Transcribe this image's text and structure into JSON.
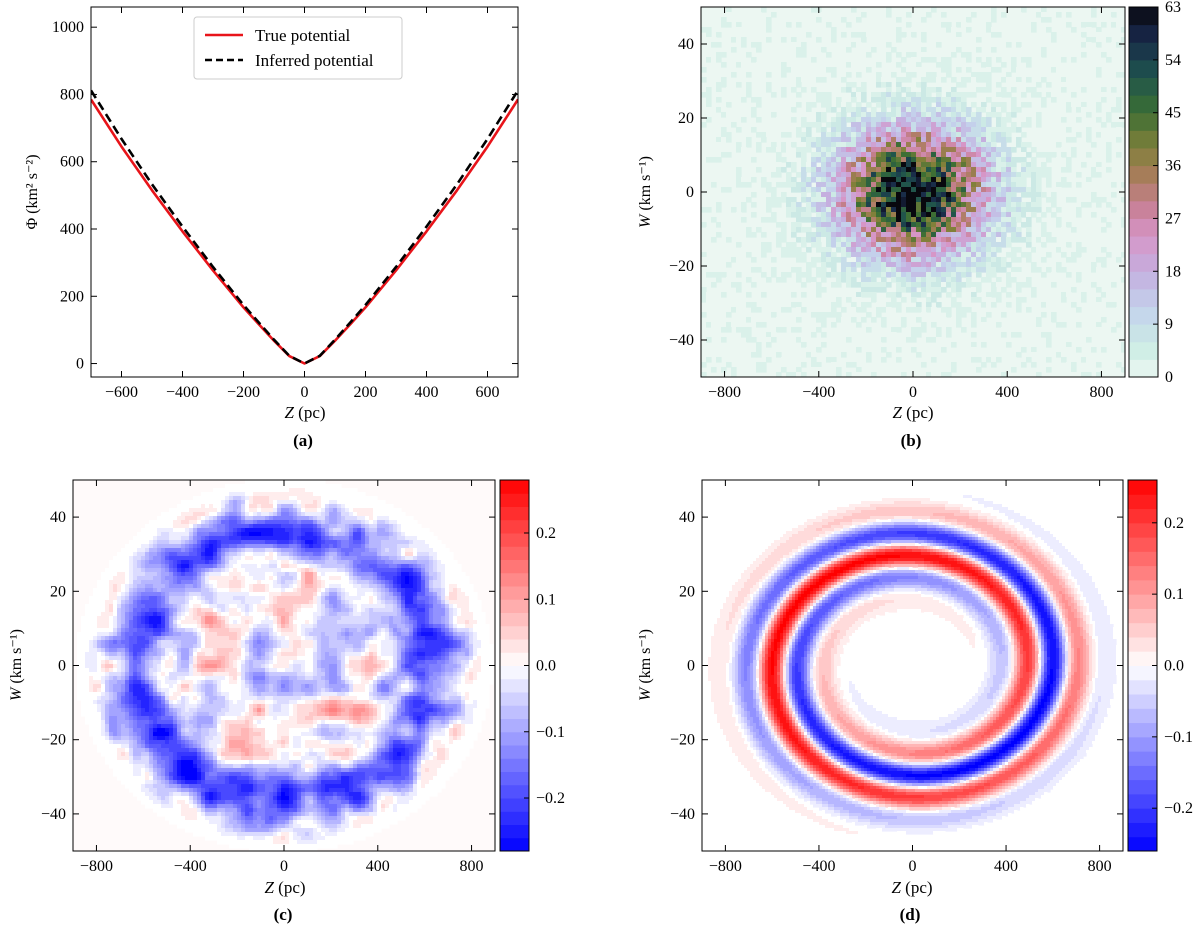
{
  "chart_data": [
    {
      "id": "a",
      "type": "line",
      "caption": "(a)",
      "xlabel_var": "Z",
      "xlabel_unit": " (pc)",
      "ylabel": "Φ (km² s⁻²)",
      "xlim": [
        -700,
        700
      ],
      "ylim": [
        -40,
        1060
      ],
      "xticks": [
        -600,
        -400,
        -200,
        0,
        200,
        400,
        600
      ],
      "yticks": [
        0,
        200,
        400,
        600,
        800,
        1000
      ],
      "legend_position": "top-center",
      "series": [
        {
          "name": "True potential",
          "color": "#e8141a",
          "style": "solid",
          "x": [
            -700,
            -600,
            -500,
            -400,
            -300,
            -200,
            -150,
            -100,
            -50,
            0,
            50,
            100,
            150,
            200,
            300,
            400,
            500,
            600,
            700
          ],
          "y": [
            785,
            645,
            515,
            393,
            277,
            167,
            117,
            68,
            22,
            0,
            22,
            68,
            117,
            167,
            277,
            393,
            515,
            645,
            785
          ]
        },
        {
          "name": "Inferred potential",
          "color": "#000000",
          "style": "dashed",
          "x": [
            -700,
            -600,
            -500,
            -400,
            -300,
            -200,
            -150,
            -100,
            -50,
            0,
            50,
            100,
            150,
            200,
            300,
            400,
            500,
            600,
            700
          ],
          "y": [
            812,
            668,
            533,
            407,
            287,
            174,
            122,
            71,
            23,
            0,
            23,
            71,
            122,
            174,
            287,
            407,
            533,
            668,
            812
          ]
        }
      ]
    },
    {
      "id": "b",
      "type": "heatmap",
      "caption": "(b)",
      "xlabel_var": "Z",
      "xlabel_unit": " (pc)",
      "ylabel_var": "W",
      "ylabel_unit": " (km s⁻¹)",
      "xlim": [
        -900,
        900
      ],
      "ylim": [
        -50,
        50
      ],
      "xticks": [
        -800,
        -400,
        0,
        400,
        800
      ],
      "yticks": [
        -40,
        -20,
        0,
        20,
        40
      ],
      "colorbar_range": [
        0,
        63
      ],
      "colorbar_ticks": [
        0,
        9,
        18,
        27,
        36,
        45,
        54,
        63
      ],
      "model": "counts ≈ 63·exp(-r²/(2·0.28²)), r = √((Z/730)² + (W/40)²)",
      "peak": 63,
      "scale_z": 730,
      "scale_w": 40,
      "sigma": 0.28
    },
    {
      "id": "c",
      "type": "heatmap",
      "caption": "(c)",
      "xlabel_var": "Z",
      "xlabel_unit": " (pc)",
      "ylabel_var": "W",
      "ylabel_unit": " (km s⁻¹)",
      "xlim": [
        -900,
        900
      ],
      "ylim": [
        -50,
        50
      ],
      "xticks": [
        -800,
        -400,
        0,
        400,
        800
      ],
      "yticks": [
        -40,
        -20,
        0,
        20,
        40
      ],
      "colorbar_range": [
        -0.28,
        0.28
      ],
      "colorbar_ticks": [
        0.2,
        0.1,
        0.0,
        -0.1,
        -0.2
      ],
      "colorbar_ticklabels": [
        "0.2",
        "0.1",
        "0.0",
        "−0.1",
        "−0.2"
      ],
      "description": "noisy residual: blue ring at r≈0.85, mottled interior",
      "ring_radius": 0.85,
      "ring_depth": -0.2
    },
    {
      "id": "d",
      "type": "heatmap",
      "caption": "(d)",
      "xlabel_var": "Z",
      "xlabel_unit": " (pc)",
      "ylabel_var": "W",
      "ylabel_unit": " (km s⁻¹)",
      "xlim": [
        -900,
        900
      ],
      "ylim": [
        -50,
        50
      ],
      "xticks": [
        -800,
        -400,
        0,
        400,
        800
      ],
      "yticks": [
        -40,
        -20,
        0,
        20,
        40
      ],
      "colorbar_range": [
        -0.26,
        0.26
      ],
      "colorbar_ticks": [
        0.2,
        0.1,
        0.0,
        -0.1,
        -0.2
      ],
      "colorbar_ticklabels": [
        "0.2",
        "0.1",
        "0.0",
        "−0.1",
        "−0.2"
      ],
      "description": "phase-space spiral, alternating red and blue arms",
      "spiral_turns": 1.5,
      "amplitude": 0.26
    }
  ]
}
